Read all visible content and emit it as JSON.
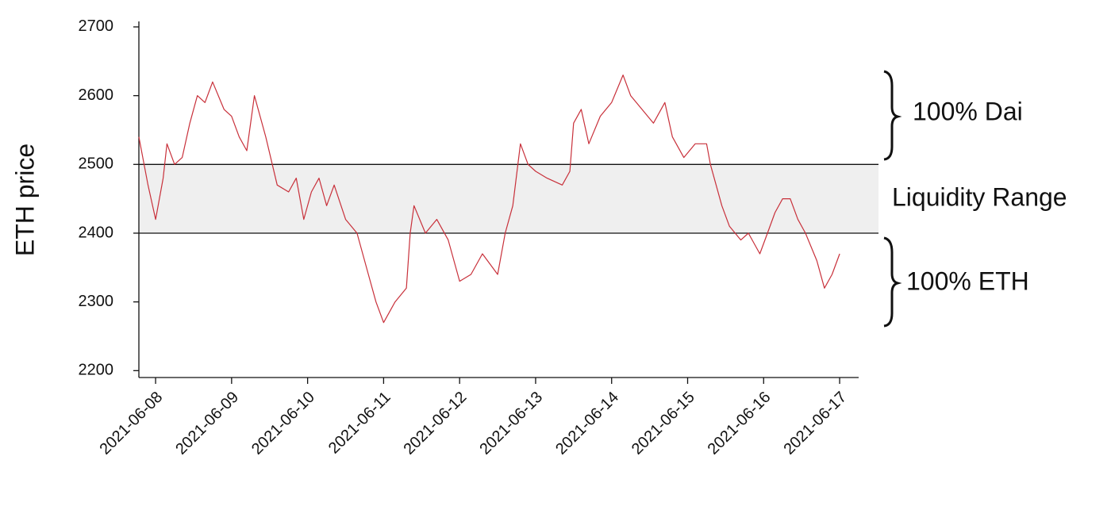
{
  "chart_data": {
    "type": "line",
    "y_label": "ETH price",
    "x": [
      -0.22,
      -0.1,
      0,
      0.1,
      0.15,
      0.25,
      0.35,
      0.45,
      0.55,
      0.65,
      0.75,
      0.9,
      1.0,
      1.1,
      1.2,
      1.3,
      1.45,
      1.6,
      1.75,
      1.85,
      1.95,
      2.05,
      2.15,
      2.25,
      2.35,
      2.5,
      2.65,
      2.8,
      2.9,
      3.0,
      3.15,
      3.3,
      3.35,
      3.4,
      3.55,
      3.7,
      3.85,
      4.0,
      4.15,
      4.3,
      4.5,
      4.6,
      4.7,
      4.8,
      4.9,
      5.0,
      5.15,
      5.35,
      5.45,
      5.5,
      5.6,
      5.7,
      5.85,
      6.0,
      6.15,
      6.25,
      6.4,
      6.55,
      6.7,
      6.8,
      6.95,
      7.1,
      7.25,
      7.3,
      7.45,
      7.55,
      7.7,
      7.8,
      7.95,
      8.05,
      8.15,
      8.25,
      8.35,
      8.45,
      8.55,
      8.7,
      8.8,
      8.9,
      9.0
    ],
    "series": [
      {
        "name": "ETH price",
        "color": "#c8303a",
        "values": [
          2540,
          2470,
          2420,
          2480,
          2530,
          2500,
          2510,
          2560,
          2600,
          2590,
          2620,
          2580,
          2570,
          2540,
          2520,
          2600,
          2540,
          2470,
          2460,
          2480,
          2420,
          2460,
          2480,
          2440,
          2470,
          2420,
          2400,
          2340,
          2300,
          2270,
          2300,
          2320,
          2400,
          2440,
          2400,
          2420,
          2390,
          2330,
          2340,
          2370,
          2340,
          2400,
          2440,
          2530,
          2500,
          2490,
          2480,
          2470,
          2490,
          2560,
          2580,
          2530,
          2570,
          2590,
          2630,
          2600,
          2580,
          2560,
          2590,
          2540,
          2510,
          2530,
          2530,
          2500,
          2440,
          2410,
          2390,
          2400,
          2370,
          2400,
          2430,
          2450,
          2450,
          2420,
          2400,
          2360,
          2320,
          2340,
          2370
        ]
      }
    ],
    "xlim": [
      -0.22,
      9.25
    ],
    "xticks": [
      {
        "value": 0,
        "label": "2021-06-08"
      },
      {
        "value": 1,
        "label": "2021-06-09"
      },
      {
        "value": 2,
        "label": "2021-06-10"
      },
      {
        "value": 3,
        "label": "2021-06-11"
      },
      {
        "value": 4,
        "label": "2021-06-12"
      },
      {
        "value": 5,
        "label": "2021-06-13"
      },
      {
        "value": 6,
        "label": "2021-06-14"
      },
      {
        "value": 7,
        "label": "2021-06-15"
      },
      {
        "value": 8,
        "label": "2021-06-16"
      },
      {
        "value": 9,
        "label": "2021-06-17"
      }
    ],
    "ylim": [
      2190,
      2708
    ],
    "yticks": [
      2200,
      2300,
      2400,
      2500,
      2600,
      2700
    ],
    "range": [
      2400,
      2500
    ],
    "annotations": [
      "100% Dai",
      "Liquidity Range",
      "100% ETH"
    ]
  }
}
